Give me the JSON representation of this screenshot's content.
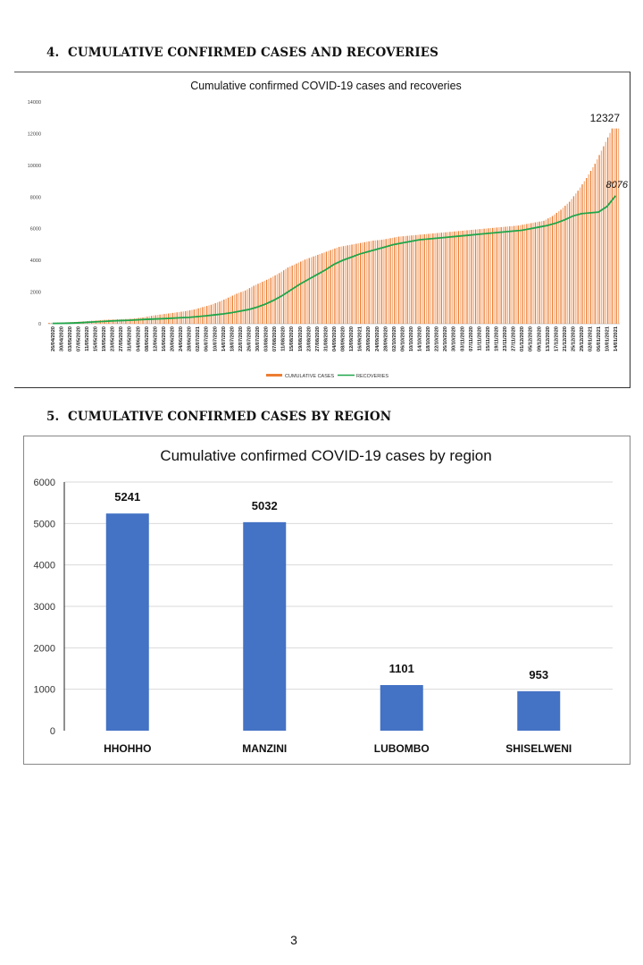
{
  "page": {
    "section4_number": "4.",
    "section4_heading": "CUMULATIVE CONFIRMED CASES AND RECOVERIES",
    "section5_number": "5.",
    "section5_heading": "CUMULATIVE CONFIRMED CASES BY REGION",
    "page_number": "3"
  },
  "colors": {
    "cases": "#ED7D31",
    "cases_light": "#F4B183",
    "recoveries": "#1FA64A",
    "region_bar": "#4472C4"
  },
  "chart_data": [
    {
      "type": "bar",
      "title": "Cumulative confirmed COVID-19 cases and recoveries",
      "xlabel": "",
      "ylabel": "",
      "ylim": [
        0,
        14000
      ],
      "yticks": [
        0,
        2000,
        4000,
        6000,
        8000,
        10000,
        12000,
        14000
      ],
      "grid": false,
      "legend": "bottom",
      "legend_entries": [
        "CUMULATIVE CASES",
        "RECOVERIES"
      ],
      "categories": [
        "26/04/2020",
        "30/04/2020",
        "03/05/2020",
        "07/05/2020",
        "11/05/2020",
        "15/05/2020",
        "19/05/2020",
        "23/05/2020",
        "27/05/2020",
        "31/05/2020",
        "04/06/2020",
        "08/06/2020",
        "12/06/2020",
        "16/06/2020",
        "20/06/2020",
        "24/06/2020",
        "28/06/2020",
        "02/07/2021",
        "06/07/2020",
        "10/07/2020",
        "14/07/2020",
        "18/07/2020",
        "22/07/2020",
        "26/07/2020",
        "30/07/2020",
        "03/08/2020",
        "07/08/2020",
        "11/08/2020",
        "15/08/2020",
        "19/08/2020",
        "23/08/2020",
        "27/08/2020",
        "31/08/2020",
        "04/09/2020",
        "08/09/2020",
        "12/09/2020",
        "16/09/2021",
        "20/09/2020",
        "24/09/2020",
        "28/09/2020",
        "02/10/2020",
        "06/10/2020",
        "10/10/2020",
        "14/10/2020",
        "18/10/2020",
        "22/10/2020",
        "26/10/2020",
        "30/10/2020",
        "03/11/2020",
        "07/11/2020",
        "11/11/2020",
        "15/11/2020",
        "19/11/2020",
        "23/11/2020",
        "27/11/2020",
        "01/12/2020",
        "05/12/2020",
        "09/12/2020",
        "13/12/2020",
        "17/12/2020",
        "21/12/2020",
        "25/12/2020",
        "29/12/2020",
        "02/01/2021",
        "06/01/2021",
        "10/01/2021",
        "14/01/2021"
      ],
      "series": [
        {
          "name": "CUMULATIVE CASES",
          "kind": "bar",
          "values": [
            60,
            75,
            90,
            110,
            150,
            190,
            230,
            260,
            280,
            300,
            330,
            400,
            500,
            580,
            650,
            720,
            800,
            900,
            1050,
            1200,
            1400,
            1650,
            1900,
            2100,
            2400,
            2650,
            2900,
            3200,
            3550,
            3800,
            4050,
            4250,
            4450,
            4650,
            4850,
            4950,
            5050,
            5150,
            5250,
            5300,
            5400,
            5500,
            5550,
            5600,
            5650,
            5700,
            5750,
            5800,
            5850,
            5900,
            5950,
            6000,
            6050,
            6100,
            6150,
            6200,
            6300,
            6400,
            6500,
            6800,
            7200,
            7700,
            8400,
            9200,
            10100,
            11200,
            12327
          ]
        },
        {
          "name": "RECOVERIES",
          "kind": "line",
          "values": [
            20,
            30,
            40,
            60,
            90,
            120,
            150,
            180,
            200,
            220,
            250,
            280,
            300,
            320,
            350,
            380,
            400,
            450,
            500,
            560,
            620,
            700,
            800,
            900,
            1050,
            1250,
            1500,
            1800,
            2150,
            2500,
            2800,
            3100,
            3400,
            3750,
            4000,
            4200,
            4400,
            4550,
            4700,
            4850,
            5000,
            5100,
            5200,
            5300,
            5350,
            5400,
            5450,
            5500,
            5550,
            5600,
            5650,
            5700,
            5750,
            5800,
            5850,
            5900,
            6000,
            6100,
            6200,
            6350,
            6550,
            6800,
            6950,
            7000,
            7050,
            7400,
            8076
          ]
        }
      ],
      "annotations": [
        {
          "text": "12327",
          "series": "CUMULATIVE CASES",
          "at": "14/01/2021"
        },
        {
          "text": "8076",
          "series": "RECOVERIES",
          "at": "14/01/2021"
        }
      ]
    },
    {
      "type": "bar",
      "title": "Cumulative confirmed COVID-19 cases by region",
      "xlabel": "",
      "ylabel": "",
      "ylim": [
        0,
        6000
      ],
      "yticks": [
        0,
        1000,
        2000,
        3000,
        4000,
        5000,
        6000
      ],
      "grid": true,
      "categories": [
        "HHOHHO",
        "MANZINI",
        "LUBOMBO",
        "SHISELWENI"
      ],
      "values": [
        5241,
        5032,
        1101,
        953
      ],
      "data_labels": [
        "5241",
        "5032",
        "1101",
        "953"
      ]
    }
  ]
}
